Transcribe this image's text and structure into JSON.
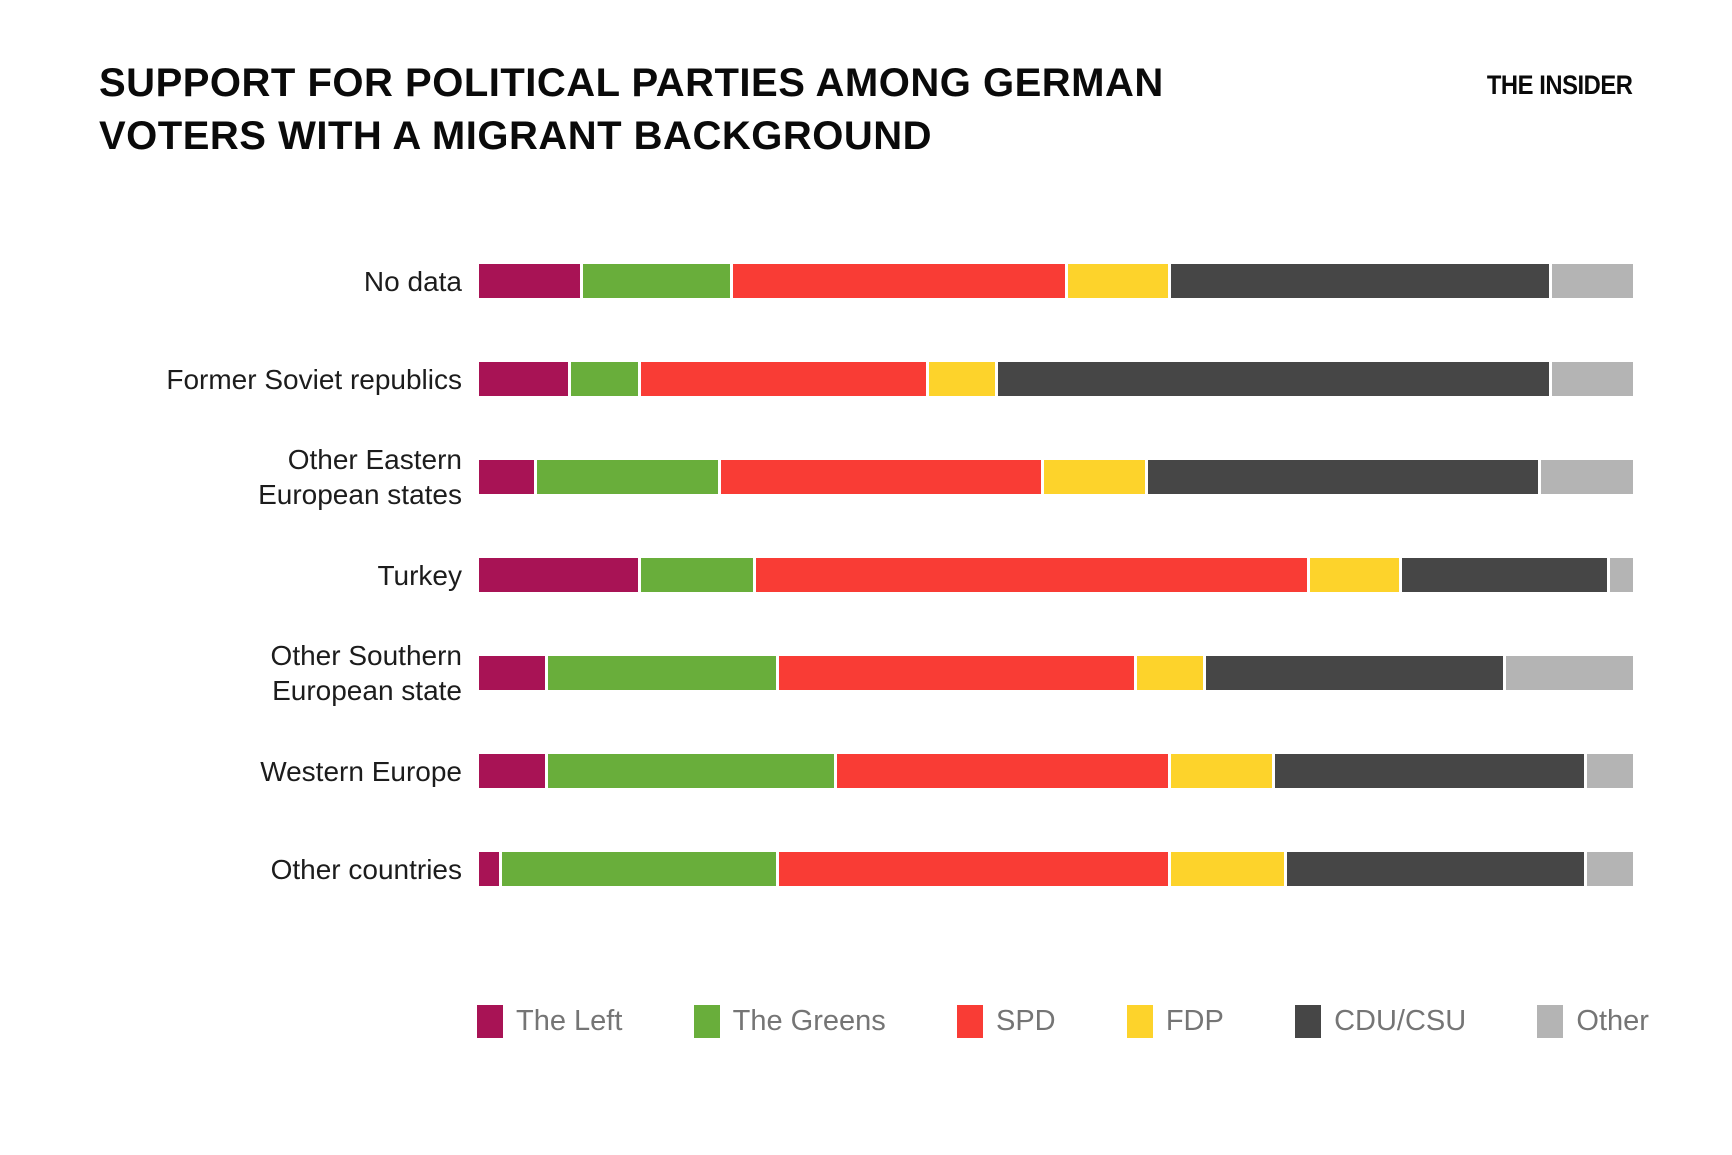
{
  "header": {
    "title_line1": "SUPPORT FOR POLITICAL PARTIES AMONG GERMAN",
    "title_line2": "VOTERS WITH A MIGRANT BACKGROUND",
    "brand": "THE INSIDER"
  },
  "colors": {
    "background": "#ffffff",
    "title_text": "#0a0a0a",
    "category_label_text": "#1c1c1c",
    "legend_text": "#757575",
    "segment_gap": "#ffffff"
  },
  "chart_data": {
    "type": "bar",
    "stacked": true,
    "orientation": "horizontal",
    "unit": "percent",
    "title": "SUPPORT FOR POLITICAL PARTIES AMONG GERMAN VOTERS WITH A MIGRANT BACKGROUND",
    "xlim": [
      0,
      100
    ],
    "grid": false,
    "legend_position": "bottom",
    "categories": [
      "No data",
      "Former Soviet republics",
      "Other Eastern\nEuropean states",
      "Turkey",
      "Other Southern\nEuropean state",
      "Western Europe",
      "Other countries"
    ],
    "series": [
      {
        "name": "The Left",
        "color": "#a81355",
        "values": [
          9,
          8,
          5,
          14,
          6,
          6,
          2
        ]
      },
      {
        "name": "The Greens",
        "color": "#69ae3b",
        "values": [
          13,
          6,
          16,
          10,
          20,
          25,
          24
        ]
      },
      {
        "name": "SPD",
        "color": "#f93c35",
        "values": [
          29,
          25,
          28,
          48,
          31,
          29,
          34
        ]
      },
      {
        "name": "FDP",
        "color": "#fdd32b",
        "values": [
          9,
          6,
          9,
          8,
          6,
          9,
          10
        ]
      },
      {
        "name": "CDU/CSU",
        "color": "#464646",
        "values": [
          33,
          48,
          34,
          18,
          26,
          27,
          26
        ]
      },
      {
        "name": "Other",
        "color": "#b4b4b4",
        "values": [
          7,
          7,
          8,
          2,
          11,
          4,
          4
        ]
      }
    ]
  }
}
